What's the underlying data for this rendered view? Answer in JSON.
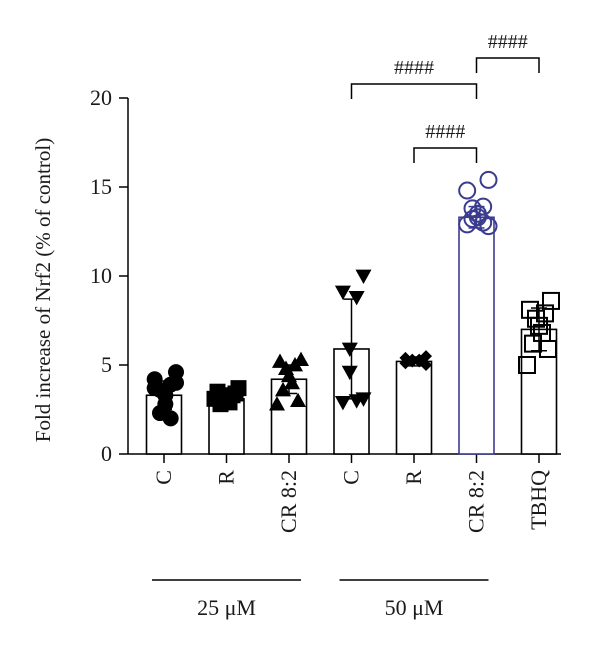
{
  "chart_data": {
    "type": "bar",
    "title": "",
    "ylabel": "Fold increase of Nrf2 (% of control)",
    "xlabel": "",
    "ylim": [
      0,
      20
    ],
    "yticks": [
      0,
      5,
      10,
      15,
      20
    ],
    "categories": [
      "C",
      "R",
      "CR 8:2",
      "C",
      "R",
      "CR 8:2",
      "TBHQ"
    ],
    "values": [
      3.3,
      3.1,
      4.2,
      5.9,
      5.2,
      13.3,
      7.0
    ],
    "errors": [
      0.8,
      0.35,
      0.8,
      2.8,
      0.25,
      0.6,
      1.2
    ],
    "points": [
      [
        4.6,
        4.2,
        3.9,
        3.6,
        3.3,
        2.8,
        2.3,
        2.0,
        3.7,
        4.0
      ],
      [
        3.7,
        3.5,
        3.3,
        3.2,
        3.0,
        2.9,
        2.8,
        3.4,
        3.1
      ],
      [
        5.3,
        5.2,
        5.0,
        4.8,
        4.4,
        4.0,
        3.6,
        3.0,
        2.8
      ],
      [
        10.0,
        9.1,
        8.8,
        5.9,
        4.6,
        3.0,
        2.9,
        3.1
      ],
      [
        5.5,
        5.4,
        5.3,
        5.3,
        5.2,
        5.2,
        5.1,
        5.0
      ],
      [
        15.4,
        14.8,
        13.9,
        13.8,
        13.5,
        13.3,
        13.2,
        13.0,
        12.9,
        12.8
      ],
      [
        8.6,
        8.1,
        7.9,
        7.6,
        7.2,
        6.8,
        6.2,
        5.9,
        5.0
      ]
    ],
    "markers": [
      "circle-filled",
      "square-filled",
      "triangle-up-filled",
      "triangle-down-filled",
      "diamond-filled",
      "circle-open",
      "square-open"
    ],
    "colors": [
      "#000000",
      "#000000",
      "#000000",
      "#000000",
      "#000000",
      "#3b3b8f",
      "#000000"
    ],
    "significance": [
      {
        "from": 4,
        "to": 5,
        "label": "####"
      },
      {
        "from": 3,
        "to": 5,
        "label": "####"
      },
      {
        "from": 5,
        "to": 6,
        "label": "####"
      }
    ],
    "groups": [
      {
        "label": "25 μM",
        "from": 0,
        "to": 2
      },
      {
        "label": "50 μM",
        "from": 3,
        "to": 5
      }
    ]
  }
}
